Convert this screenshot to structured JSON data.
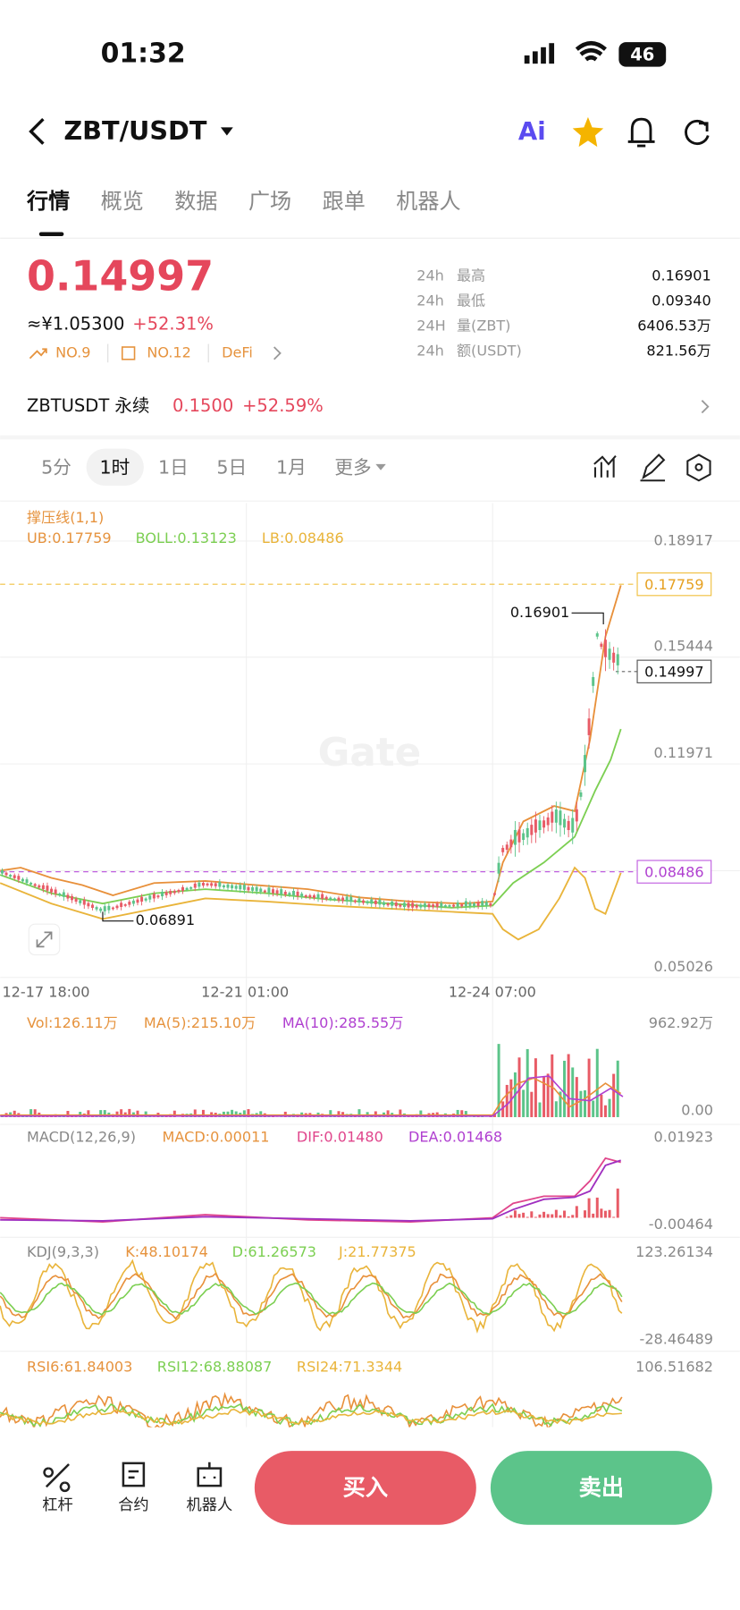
{
  "status": {
    "time": "01:32",
    "battery": "46"
  },
  "header": {
    "pair": "ZBT/USDT",
    "ai": "Ai"
  },
  "tabs": [
    "行情",
    "概览",
    "数据",
    "广场",
    "跟单",
    "机器人"
  ],
  "ticker": {
    "price": "0.14997",
    "cny": "≈¥1.05300",
    "change": "+52.31%",
    "tags": [
      "NO.9",
      "NO.12",
      "DeFi"
    ]
  },
  "stats": [
    [
      "24h",
      "最高",
      "0.16901"
    ],
    [
      "24h",
      "最低",
      "0.09340"
    ],
    [
      "24H",
      "量(ZBT)",
      "6406.53万"
    ],
    [
      "24h",
      "额(USDT)",
      "821.56万"
    ]
  ],
  "perpetual": {
    "name": "ZBTUSDT 永续",
    "price": "0.1500",
    "change": "+52.59%"
  },
  "intervals": [
    "5分",
    "1时",
    "1日",
    "5日",
    "1月",
    "更多"
  ],
  "main_chart": {
    "indicator": "撑压线(1,1)",
    "ub": "UB:0.17759",
    "boll": "BOLL:0.13123",
    "lb": "LB:0.08486",
    "axis": [
      "0.18917",
      "0.15444",
      "0.11971",
      "0.05026"
    ],
    "ub_tag": "0.17759",
    "price_tag": "0.14997",
    "lb_tag": "0.08486",
    "high_note": "0.16901",
    "low_note": "0.06891",
    "dates": [
      "12-17 18:00",
      "12-21 01:00",
      "12-24 07:00"
    ],
    "watermark": "Gate"
  },
  "volume": {
    "vol": "Vol:126.11万",
    "ma5": "MA(5):215.10万",
    "ma10": "MA(10):285.55万",
    "axis": [
      "962.92万",
      "0.00"
    ]
  },
  "macd": {
    "name": "MACD(12,26,9)",
    "macd": "MACD:0.00011",
    "dif": "DIF:0.01480",
    "dea": "DEA:0.01468",
    "axis": [
      "0.01923",
      "-0.00464"
    ]
  },
  "kdj": {
    "name": "KDJ(9,3,3)",
    "k": "K:48.10174",
    "d": "D:61.26573",
    "j": "J:21.77375",
    "axis": [
      "123.26134",
      "-28.46489"
    ]
  },
  "rsi": {
    "rsi6": "RSI6:61.84003",
    "rsi12": "RSI12:68.88087",
    "rsi24": "RSI24:71.3344",
    "axis": [
      "106.51682"
    ]
  },
  "bottom": {
    "nav": [
      "杠杆",
      "合约",
      "机器人"
    ],
    "buy": "买入",
    "sell": "卖出"
  }
}
